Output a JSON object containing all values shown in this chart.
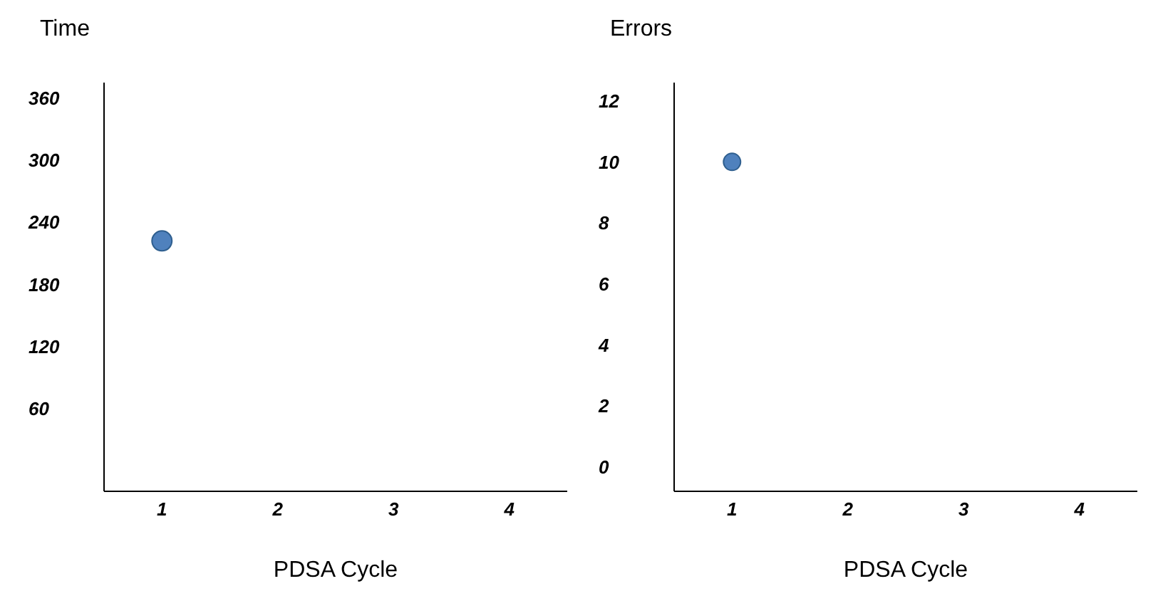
{
  "chart_data": [
    {
      "type": "scatter",
      "ylabel": "Time",
      "xlabel": "PDSA Cycle",
      "categories": [
        "1",
        "2",
        "3",
        "4"
      ],
      "series": [
        {
          "color": "#4f81bd",
          "values": [
            222,
            null,
            null,
            null
          ]
        }
      ],
      "ylim": [
        -20,
        375
      ],
      "yticks": [
        60,
        120,
        180,
        240,
        300,
        360
      ],
      "marker": "circle"
    },
    {
      "type": "scatter",
      "ylabel": "Errors",
      "xlabel": "PDSA Cycle",
      "categories": [
        "1",
        "2",
        "3",
        "4"
      ],
      "series": [
        {
          "color": "#4f81bd",
          "values": [
            10,
            null,
            null,
            null
          ]
        }
      ],
      "ylim": [
        -0.8,
        12.6
      ],
      "yticks": [
        0,
        2,
        4,
        6,
        8,
        10,
        12
      ],
      "marker": "circle"
    }
  ]
}
